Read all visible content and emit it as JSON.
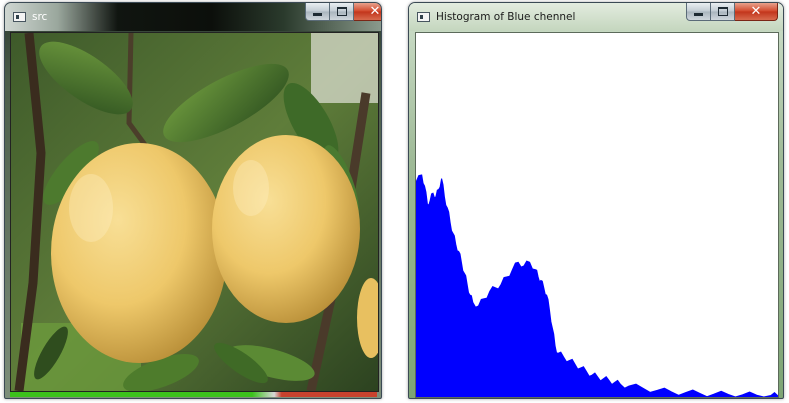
{
  "src_window": {
    "title": "src",
    "image_description_icon": "photo-of-yellow-citrus-fruit",
    "status_colors": [
      "#3cc21c",
      "#d7d7d7",
      "#c8422e"
    ]
  },
  "hist_window": {
    "title": "Histogram of Blue chennel",
    "fill_color": "#0000ff"
  },
  "controls": {
    "minimize_icon": "minimize-icon",
    "maximize_icon": "maximize-icon",
    "close_icon": "close-icon",
    "close_glyph": "✕"
  },
  "chart_data": {
    "type": "area",
    "title": "Histogram of Blue chennel",
    "xlabel": "",
    "ylabel": "",
    "xlim": [
      0,
      255
    ],
    "ylim": [
      0,
      1
    ],
    "grid": false,
    "color": "#0000ff",
    "x": [
      0,
      4,
      6,
      8,
      10,
      12,
      14,
      16,
      18,
      20,
      22,
      24,
      26,
      28,
      30,
      32,
      34,
      36,
      38,
      40,
      44,
      48,
      52,
      56,
      60,
      64,
      68,
      72,
      76,
      80,
      84,
      86,
      88,
      90,
      92,
      94,
      96,
      98,
      100,
      104,
      108,
      112,
      116,
      120,
      124,
      128,
      132,
      136,
      140,
      144,
      150,
      160,
      170,
      180,
      190,
      200,
      210,
      220,
      230,
      240,
      250,
      255
    ],
    "values": [
      0.59,
      0.61,
      0.58,
      0.53,
      0.54,
      0.56,
      0.55,
      0.57,
      0.6,
      0.55,
      0.52,
      0.48,
      0.45,
      0.42,
      0.4,
      0.37,
      0.34,
      0.31,
      0.28,
      0.26,
      0.25,
      0.27,
      0.29,
      0.3,
      0.31,
      0.33,
      0.35,
      0.37,
      0.36,
      0.37,
      0.35,
      0.33,
      0.32,
      0.3,
      0.28,
      0.24,
      0.19,
      0.14,
      0.12,
      0.11,
      0.1,
      0.09,
      0.08,
      0.07,
      0.06,
      0.055,
      0.05,
      0.045,
      0.04,
      0.035,
      0.03,
      0.024,
      0.018,
      0.014,
      0.012,
      0.01,
      0.008,
      0.007,
      0.006,
      0.005,
      0.004,
      0.003
    ]
  }
}
